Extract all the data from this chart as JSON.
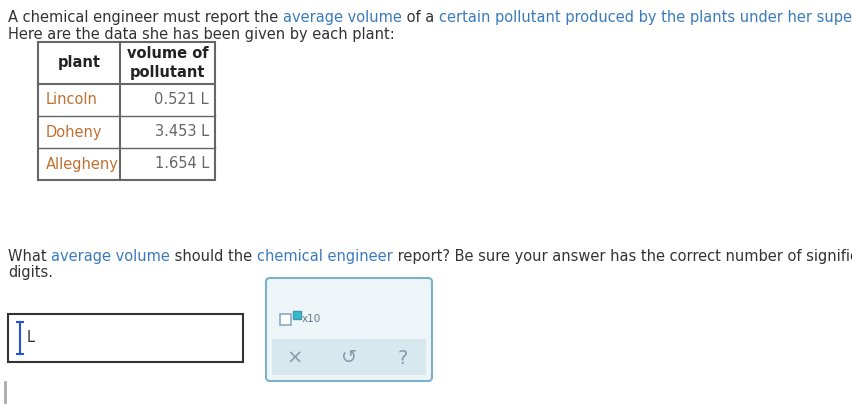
{
  "bg_color": "#ffffff",
  "body_fontsize": 10.5,
  "title_color": "#333333",
  "highlight_color": "#3a7bbf",
  "plant_color": "#c87030",
  "table_border_color": "#666666",
  "table_header_color": "#222222",
  "table_data_color": "#666666",
  "table_plant_color": "#c07030",
  "table_headers": [
    "plant",
    "volume of\npollutant"
  ],
  "table_rows": [
    [
      "Lincoln",
      "0.521 L"
    ],
    [
      "Doheny",
      "3.453 L"
    ],
    [
      "Allegheny",
      "1.654 L"
    ]
  ],
  "sci_box_border": "#7ab0c8",
  "sci_box_bg": "#eef5f8",
  "btn_area_bg": "#d8e8ef",
  "btn_color": "#8899aa",
  "cursor_color": "#2255cc",
  "input_border": "#333333",
  "vert_bar_color": "#aaaaaa"
}
